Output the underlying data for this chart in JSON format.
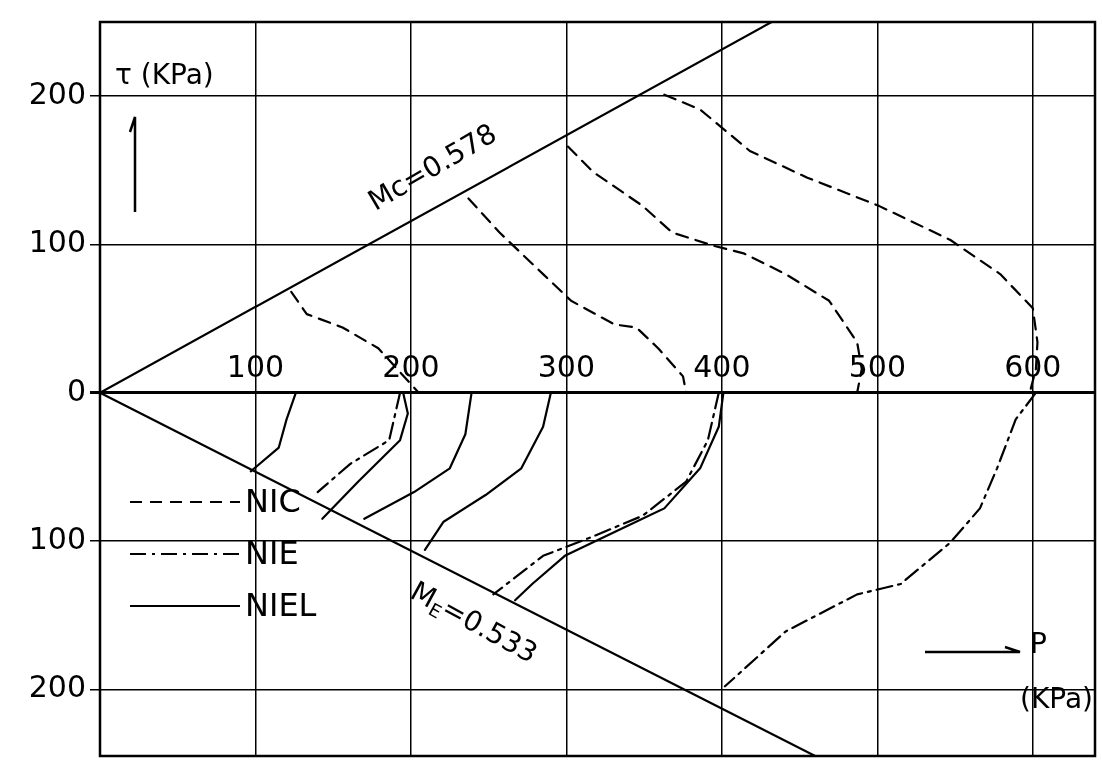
{
  "chart_data": {
    "type": "line",
    "xlabel": "P (KPa)",
    "ylabel": "τ (KPa)",
    "xlim": [
      0,
      640
    ],
    "ylim": [
      -245,
      250
    ],
    "xticks": [
      100,
      200,
      300,
      400,
      500,
      600
    ],
    "yticks": [
      {
        "value": -200,
        "label": "200"
      },
      {
        "value": -100,
        "label": "100"
      },
      0,
      100,
      200
    ],
    "grid": true,
    "legend": "bottom left",
    "marker": "none",
    "annotations": [
      "Mc=0.578",
      "M$_{E}$=0.533"
    ],
    "series": [
      {
        "color": "#000000",
        "line_style": "solid",
        "x": [
          0,
          432
        ],
        "values": [
          0,
          250
        ]
      },
      {
        "color": "#000000",
        "line_style": "solid",
        "x": [
          0,
          460
        ],
        "values": [
          0,
          -245
        ]
      },
      {
        "name": "NIC",
        "color": "#000000",
        "line_style": "dashed",
        "x": [
          123,
          133,
          156,
          179,
          205
        ],
        "values": [
          68,
          53,
          44,
          30,
          0
        ]
      },
      {
        "color": "#000000",
        "line_style": "dashed",
        "x": [
          237,
          257,
          285,
          303,
          331,
          345,
          359,
          375,
          377
        ],
        "values": [
          131,
          108,
          80,
          62,
          46,
          44,
          30,
          11,
          0
        ]
      },
      {
        "color": "#000000",
        "line_style": "dashed",
        "x": [
          301,
          317,
          349,
          368,
          395,
          414,
          441,
          469,
          487,
          490,
          487
        ],
        "values": [
          166,
          149,
          126,
          108,
          99,
          94,
          80,
          62,
          34,
          16,
          0
        ]
      },
      {
        "color": "#000000",
        "line_style": "dashed",
        "x": [
          363,
          386,
          418,
          455,
          501,
          547,
          579,
          600,
          603,
          602,
          598
        ],
        "values": [
          201,
          191,
          163,
          145,
          126,
          103,
          80,
          57,
          34,
          16,
          0
        ]
      },
      {
        "name": "NIE",
        "color": "#000000",
        "line_style": "dashdot",
        "x": [
          193,
          186,
          161,
          140
        ],
        "values": [
          0,
          -32,
          -48,
          -67
        ]
      },
      {
        "color": "#000000",
        "line_style": "dashdot",
        "x": [
          398,
          391,
          377,
          349,
          317,
          285,
          253
        ],
        "values": [
          0,
          -32,
          -60,
          -83,
          -97,
          -110,
          -136
        ]
      },
      {
        "color": "#000000",
        "line_style": "dashdot",
        "x": [
          602,
          589,
          577,
          566,
          547,
          515,
          487,
          441,
          402
        ],
        "values": [
          0,
          -18,
          -51,
          -78,
          -101,
          -129,
          -136,
          -161,
          -198
        ]
      },
      {
        "name": "NIEL",
        "color": "#000000",
        "line_style": "solid",
        "x": [
          126,
          120,
          115,
          97
        ],
        "values": [
          0,
          -18,
          -37,
          -53
        ]
      },
      {
        "color": "#000000",
        "line_style": "solid",
        "x": [
          195,
          198,
          193,
          166,
          143
        ],
        "values": [
          0,
          -14,
          -32,
          -60,
          -85
        ]
      },
      {
        "color": "#000000",
        "line_style": "solid",
        "x": [
          239,
          235,
          225,
          202,
          170
        ],
        "values": [
          0,
          -28,
          -51,
          -67,
          -85
        ]
      },
      {
        "color": "#000000",
        "line_style": "solid",
        "x": [
          290,
          285,
          271,
          248,
          221,
          209
        ],
        "values": [
          0,
          -23,
          -51,
          -69,
          -87,
          -106
        ]
      },
      {
        "color": "#000000",
        "line_style": "solid",
        "x": [
          401,
          398,
          386,
          363,
          331,
          299,
          278,
          267
        ],
        "values": [
          0,
          -23,
          -51,
          -78,
          -94,
          -110,
          -129,
          -140
        ]
      }
    ]
  }
}
